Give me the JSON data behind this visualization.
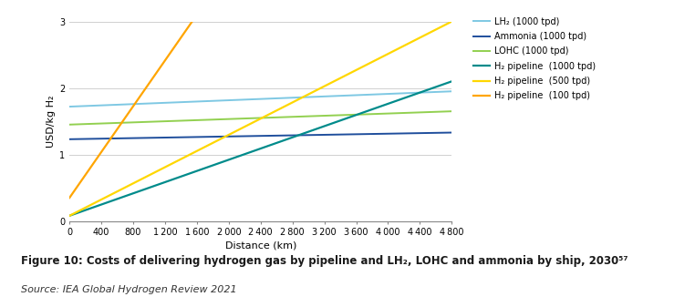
{
  "x_min": 0,
  "x_max": 4800,
  "y_min": 0,
  "y_max": 3,
  "x_ticks": [
    0,
    400,
    800,
    1200,
    1600,
    2000,
    2400,
    2800,
    3200,
    3600,
    4000,
    4400,
    4800
  ],
  "y_ticks": [
    0,
    1,
    2,
    3
  ],
  "xlabel": "Distance (km)",
  "ylabel": "USD/kg H₂",
  "series": [
    {
      "label": "LH₂ (1000 tpd)",
      "color": "#7EC8E3",
      "x": [
        0,
        4800
      ],
      "y": [
        1.72,
        1.95
      ],
      "linewidth": 1.4
    },
    {
      "label": "Ammonia (1000 tpd)",
      "color": "#1F4E9C",
      "x": [
        0,
        4800
      ],
      "y": [
        1.23,
        1.33
      ],
      "linewidth": 1.4
    },
    {
      "label": "LOHC (1000 tpd)",
      "color": "#92D050",
      "x": [
        0,
        4800
      ],
      "y": [
        1.45,
        1.65
      ],
      "linewidth": 1.4
    },
    {
      "label": "H₂ pipeline  (1000 tpd)",
      "color": "#008B8B",
      "x": [
        0,
        4800
      ],
      "y": [
        0.08,
        2.1
      ],
      "linewidth": 1.6
    },
    {
      "label": "H₂ pipeline  (500 tpd)",
      "color": "#FFD700",
      "x": [
        0,
        4800
      ],
      "y": [
        0.08,
        3.0
      ],
      "linewidth": 1.6
    },
    {
      "label": "H₂ pipeline  (100 tpd)",
      "color": "#FFA500",
      "x": [
        0,
        1540
      ],
      "y": [
        0.35,
        3.0
      ],
      "linewidth": 1.6
    }
  ],
  "figure_caption": "Figure 10: Costs of delivering hydrogen gas by pipeline and LH₂, LOHC and ammonia by ship, 2030⁵⁷",
  "source_text": "Source: IEA Global Hydrogen Review 2021",
  "background_color": "#ffffff",
  "grid_color": "#d0d0d0",
  "legend_fontsize": 7.0,
  "axis_fontsize": 8.0,
  "tick_fontsize": 7.0,
  "caption_fontsize": 8.5,
  "source_fontsize": 8.0
}
